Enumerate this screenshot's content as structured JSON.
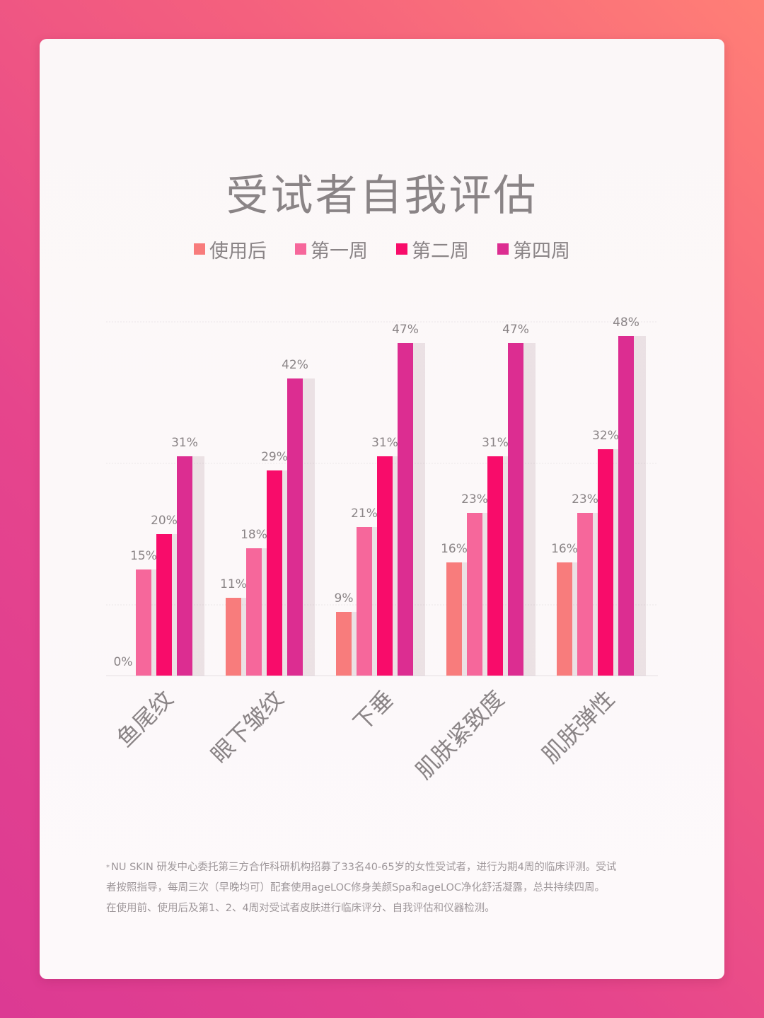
{
  "chart_data": {
    "type": "bar",
    "title": "受试者自我评估",
    "categories": [
      "鱼尾纹",
      "眼下皱纹",
      "下垂",
      "肌肤紧致度",
      "肌肤弹性"
    ],
    "series": [
      {
        "name": "使用后",
        "color": "#f87c7c",
        "values": [
          0,
          11,
          9,
          16,
          16
        ],
        "labels": [
          "0%",
          "11%",
          "9%",
          "16%",
          "16%"
        ]
      },
      {
        "name": "第一周",
        "color": "#f6679b",
        "values": [
          15,
          18,
          21,
          23,
          23
        ],
        "labels": [
          "15%",
          "18%",
          "21%",
          "23%",
          "23%"
        ]
      },
      {
        "name": "第二周",
        "color": "#f80c6a",
        "values": [
          20,
          29,
          31,
          31,
          32
        ],
        "labels": [
          "20%",
          "29%",
          "31%",
          "31%",
          "32%"
        ]
      },
      {
        "name": "第四周",
        "color": "#dc2d91",
        "values": [
          31,
          42,
          47,
          47,
          48
        ],
        "labels": [
          "31%",
          "42%",
          "47%",
          "47%",
          "48%"
        ]
      }
    ],
    "ylim": [
      0,
      50
    ],
    "grid": true,
    "legend": "top"
  },
  "footnote": {
    "marker": "*",
    "lines": [
      "NU SKIN 研发中心委托第三方合作科研机构招募了33名40-65岁的女性受试者，进行为期4周的临床评测。受试",
      "者按照指导，每周三次（早晚均可）配套使用ageLOC修身美颜Spa和ageLOC净化舒活凝露，总共持续四周。",
      "在使用前、使用后及第1、2、4周对受试者皮肤进行临床评分、自我评估和仪器检测。"
    ]
  }
}
